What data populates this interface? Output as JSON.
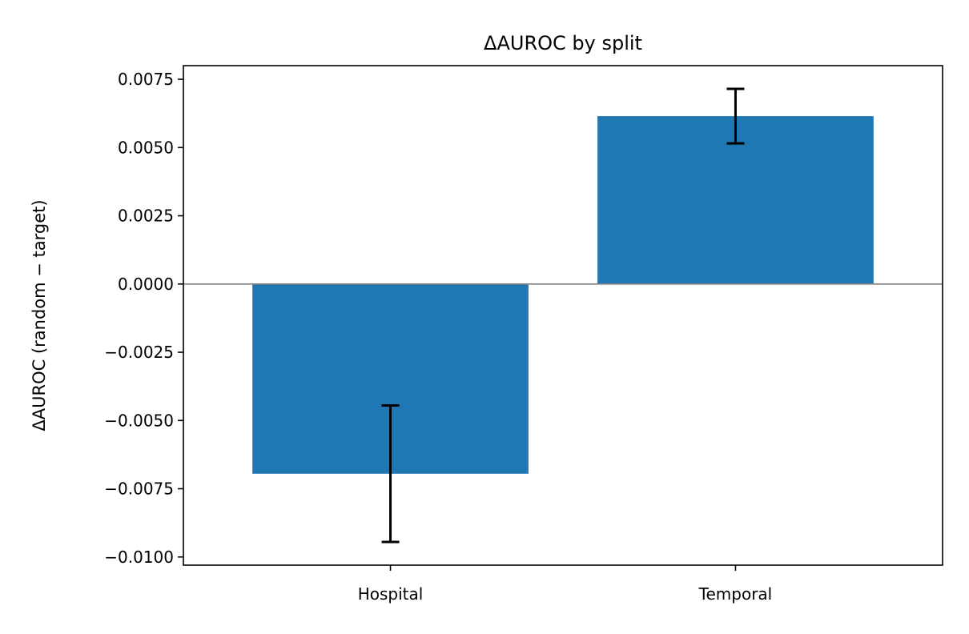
{
  "chart_data": {
    "type": "bar",
    "title": "ΔAUROC by split",
    "xlabel": "",
    "ylabel": "ΔAUROC (random − target)",
    "categories": [
      "Hospital",
      "Temporal"
    ],
    "values": [
      -0.00695,
      0.00615
    ],
    "error": [
      0.0025,
      0.001
    ],
    "ylim": [
      -0.0103,
      0.008
    ],
    "yticks": [
      -0.01,
      -0.0075,
      -0.005,
      -0.0025,
      0.0,
      0.0025,
      0.005,
      0.0075
    ],
    "ytick_labels": [
      "−0.0100",
      "−0.0075",
      "−0.0050",
      "−0.0025",
      "0.0000",
      "0.0025",
      "0.0050",
      "0.0075"
    ],
    "zero_line": true,
    "grid": false,
    "legend": "none"
  },
  "colors": {
    "bar": "#1f77b4",
    "error_bar": "#000000",
    "zero_line": "#808080",
    "axes": "#000000"
  }
}
